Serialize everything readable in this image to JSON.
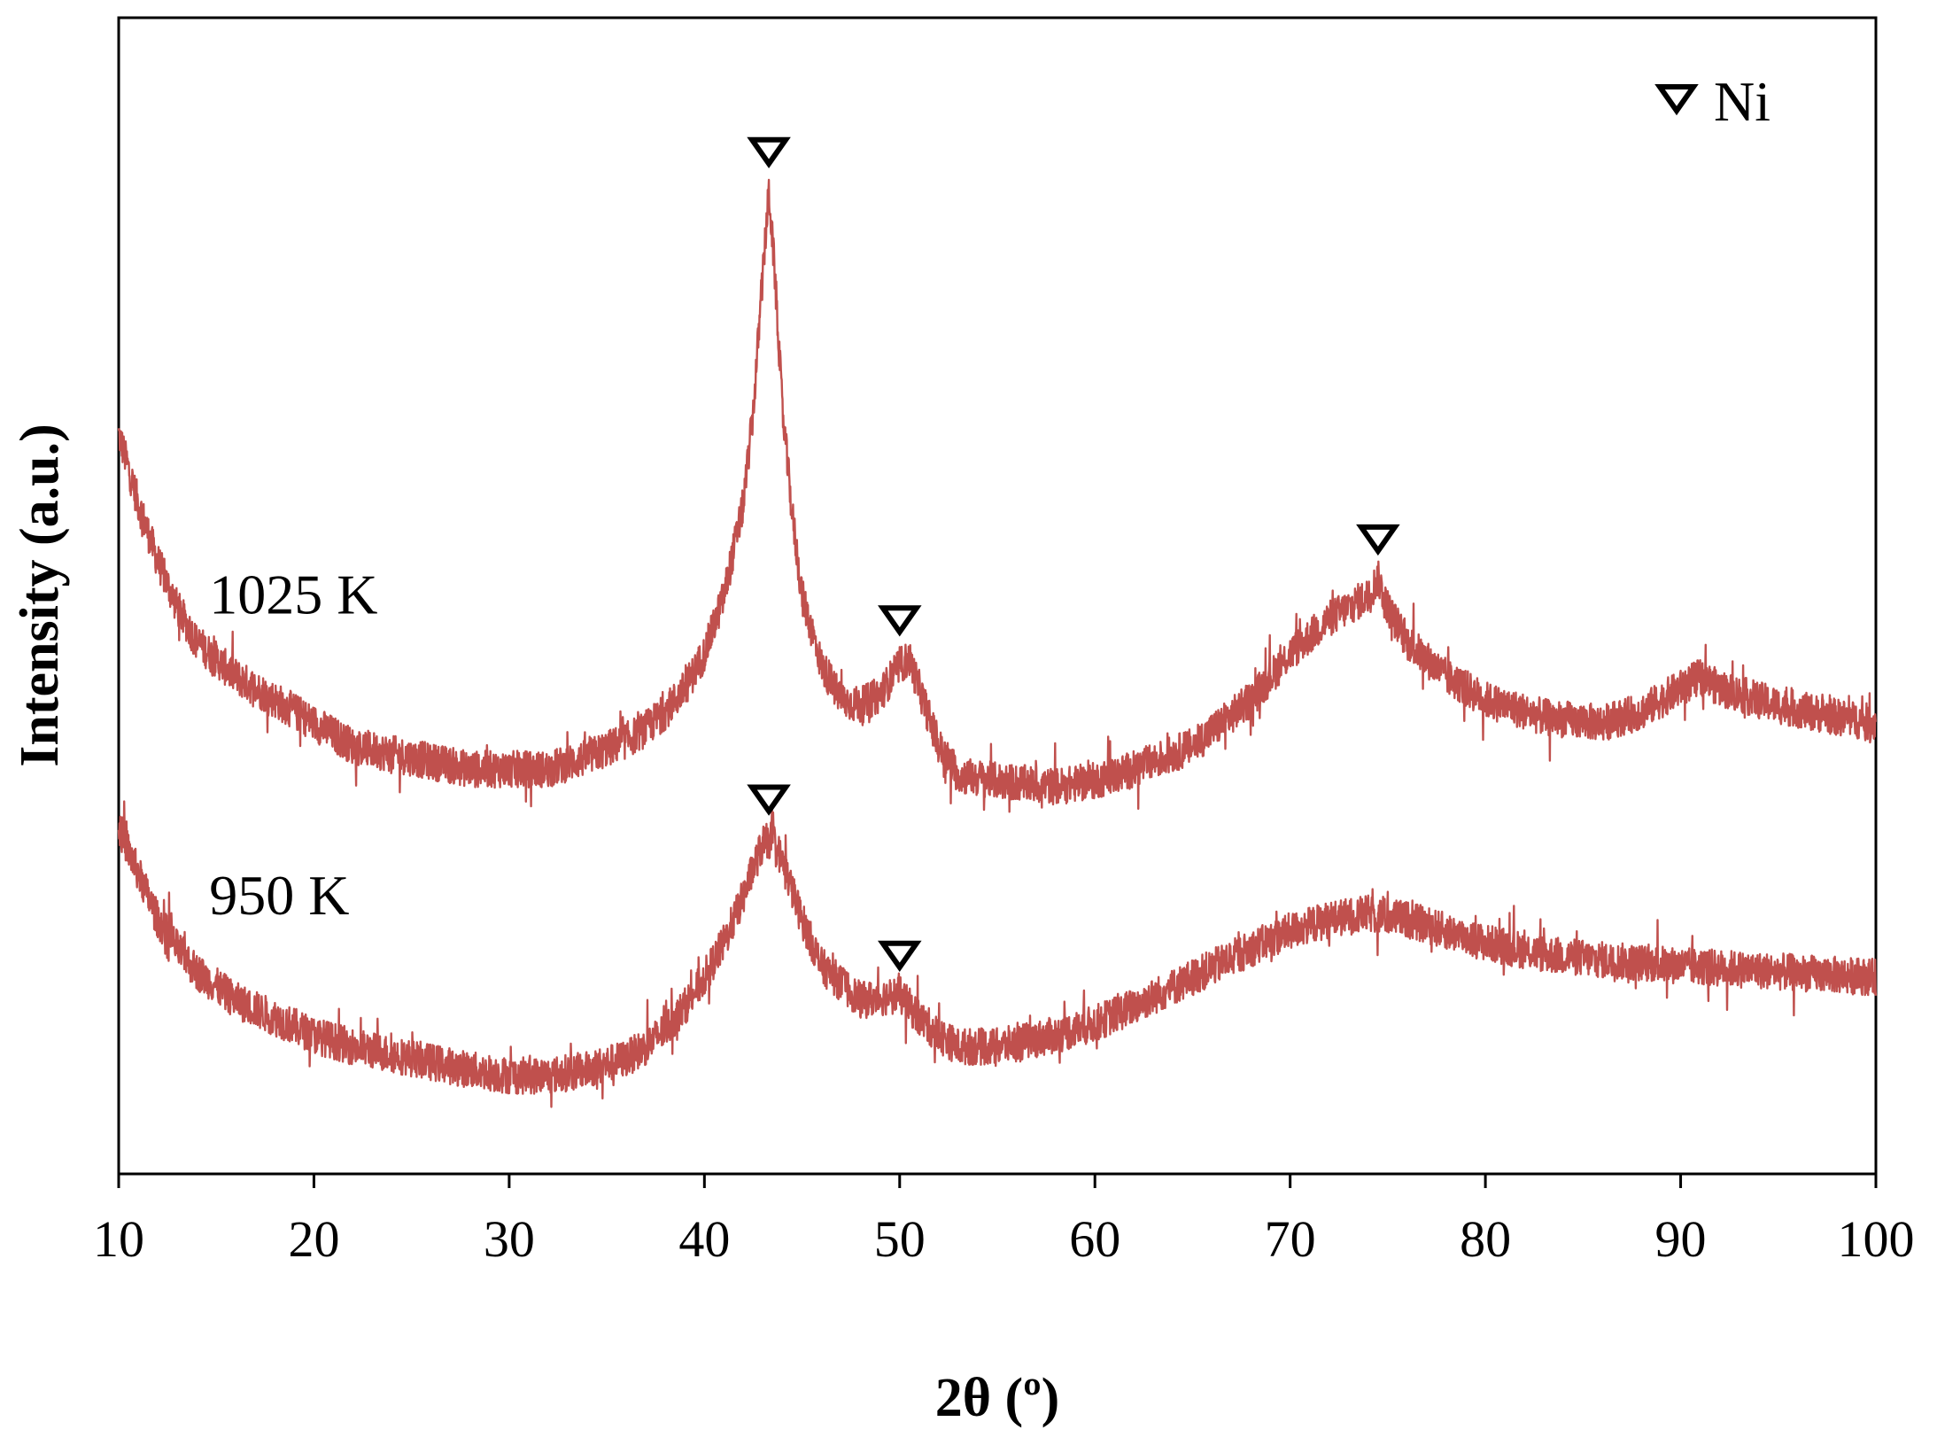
{
  "chart_data": {
    "type": "line",
    "xlabel": "2θ (º)",
    "ylabel": "Intensity (a.u.)",
    "xlim": [
      10,
      100
    ],
    "x_ticks": [
      10,
      20,
      30,
      40,
      50,
      60,
      70,
      80,
      90,
      100
    ],
    "x_tick_labels": [
      "10",
      "20",
      "30",
      "40",
      "50",
      "60",
      "70",
      "80",
      "90",
      "100"
    ],
    "y_ticks_shown": false,
    "ylim": [
      0,
      100
    ],
    "grid": false,
    "line_color": "#c0504d",
    "legend": {
      "position": "top-right",
      "marker": "open-down-triangle",
      "label": "Ni"
    },
    "series": [
      {
        "name": "1025 K",
        "x": [
          10,
          11,
          12,
          13,
          14,
          16,
          18,
          20,
          22,
          25,
          28,
          30,
          32,
          34,
          36,
          37,
          38,
          39,
          40,
          41,
          42,
          42.5,
          43,
          43.3,
          43.6,
          44,
          44.5,
          45,
          46,
          47,
          48,
          49,
          50,
          50.5,
          51,
          52,
          53,
          55,
          58,
          60,
          62,
          65,
          68,
          70,
          72,
          73,
          74,
          74.5,
          75,
          76,
          78,
          80,
          83,
          86,
          88,
          90,
          91,
          92,
          95,
          98,
          100
        ],
        "y": [
          64,
          58,
          53,
          49,
          46,
          43,
          41,
          39,
          37,
          36,
          35,
          35,
          35,
          36,
          37.5,
          38.5,
          40,
          42,
          45,
          50,
          58,
          66,
          78,
          85,
          78,
          66,
          57,
          50,
          44,
          41,
          40.5,
          41.5,
          44,
          44.5,
          42,
          37,
          34.5,
          34,
          33.5,
          34,
          35,
          37,
          41,
          45,
          48,
          49,
          50,
          51.5,
          49,
          46,
          43,
          41,
          39.5,
          39,
          40,
          42,
          43,
          42,
          40.5,
          39.5,
          39
        ]
      },
      {
        "name": "950 K",
        "x": [
          10,
          11,
          12,
          13,
          14,
          16,
          18,
          20,
          22,
          25,
          28,
          30,
          32,
          34,
          36,
          37,
          38,
          39,
          40,
          41,
          42,
          42.5,
          43,
          43.5,
          44,
          45,
          46,
          48,
          50,
          51,
          52,
          53,
          55,
          58,
          60,
          62,
          65,
          68,
          70,
          72,
          74,
          76,
          78,
          80,
          83,
          86,
          90,
          95,
          100
        ],
        "y": [
          30,
          26,
          22,
          19.5,
          17.5,
          15,
          13.5,
          12,
          11,
          10,
          9,
          8.5,
          8.5,
          9,
          10,
          11,
          12.5,
          14.5,
          17,
          20,
          24,
          26.5,
          28.5,
          29,
          27,
          22,
          18,
          15,
          15.5,
          13.5,
          12,
          11,
          11,
          12,
          13,
          14.5,
          17,
          19.5,
          21,
          22,
          22.5,
          22,
          21,
          20,
          19,
          18.5,
          18,
          17.5,
          17
        ]
      }
    ],
    "annotations": [
      {
        "text": "1025 K",
        "x": 16,
        "y": 50
      },
      {
        "text": "950 K",
        "x": 16,
        "y": 24
      }
    ],
    "ni_markers": [
      {
        "x": 43.3,
        "series": "1025 K"
      },
      {
        "x": 50.0,
        "series": "1025 K"
      },
      {
        "x": 74.5,
        "series": "1025 K"
      },
      {
        "x": 43.3,
        "series": "950 K"
      },
      {
        "x": 50.0,
        "series": "950 K"
      }
    ]
  }
}
